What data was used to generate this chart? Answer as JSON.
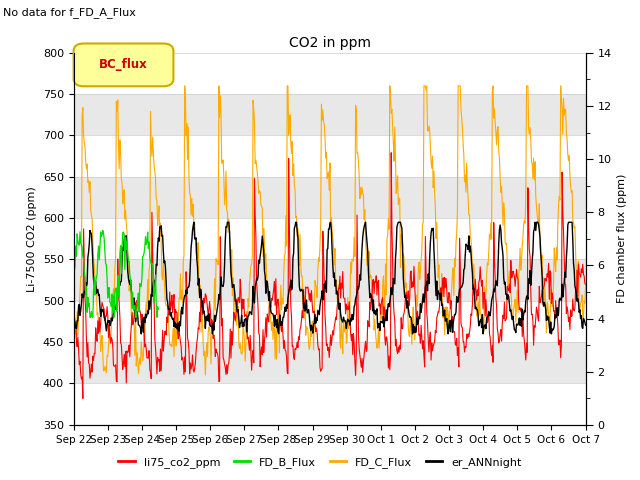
{
  "title": "CO2 in ppm",
  "subtitle": "No data for f_FD_A_Flux",
  "ylabel_left": "Li-7500 CO2 (ppm)",
  "ylabel_right": "FD chamber flux (ppm)",
  "ylim_left": [
    350,
    800
  ],
  "ylim_right": [
    0,
    14
  ],
  "yticks_left": [
    350,
    400,
    450,
    500,
    550,
    600,
    650,
    700,
    750,
    800
  ],
  "yticks_right": [
    0,
    2,
    4,
    6,
    8,
    10,
    12,
    14
  ],
  "xticklabels": [
    "Sep 22",
    "Sep 23",
    "Sep 24",
    "Sep 25",
    "Sep 26",
    "Sep 27",
    "Sep 28",
    "Sep 29",
    "Sep 30",
    "Oct 1",
    "Oct 2",
    "Oct 3",
    "Oct 4",
    "Oct 5",
    "Oct 6",
    "Oct 7"
  ],
  "line_colors": {
    "li75_co2_ppm": "#ff0000",
    "FD_B_Flux": "#00dd00",
    "FD_C_Flux": "#ffaa00",
    "er_ANNnight": "#000000"
  },
  "background_color": "#ffffff",
  "band_color": "#e8e8e8",
  "grid_color": "#cccccc"
}
